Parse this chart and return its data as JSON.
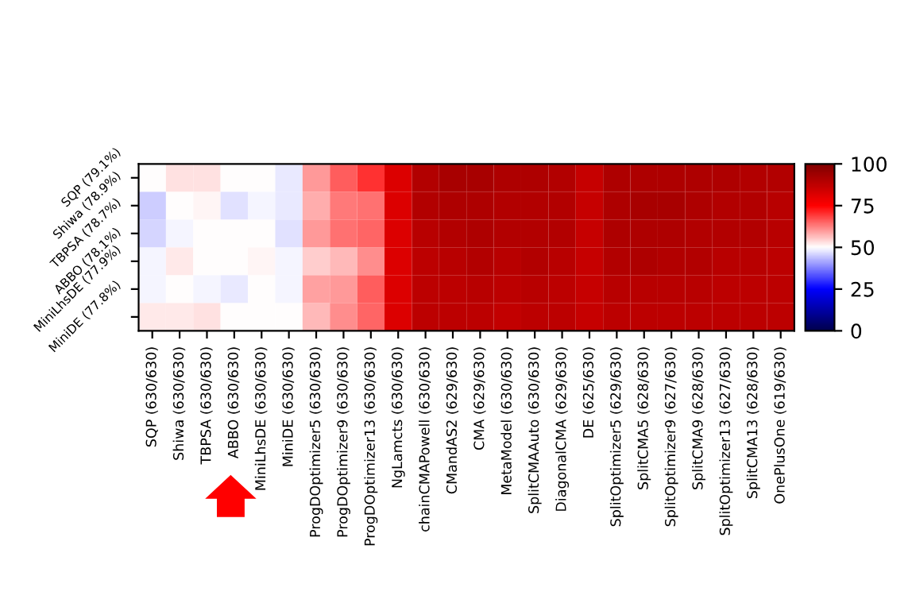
{
  "chart_data": {
    "type": "heatmap",
    "categories": [
      "SQP (630/630)",
      "Shiwa (630/630)",
      "TBPSA (630/630)",
      "ABBO (630/630)",
      "MiniLhsDE (630/630)",
      "MiniDE (630/630)",
      "ProgDOptimizer5 (630/630)",
      "ProgDOptimizer9 (630/630)",
      "ProgDOptimizer13 (630/630)",
      "NgLamcts (630/630)",
      "chainCMAPowell (630/630)",
      "CMandAS2 (629/630)",
      "CMA (629/630)",
      "MetaModel (630/630)",
      "SplitCMAAuto (630/630)",
      "DiagonalCMA (629/630)",
      "DE (625/630)",
      "SplitOptimizer5 (629/630)",
      "SplitCMA5 (628/630)",
      "SplitOptimizer9 (627/630)",
      "SplitCMA9 (628/630)",
      "SplitOptimizer13 (627/630)",
      "SplitCMA13 (628/630)",
      "OnePlusOne (619/630)"
    ],
    "y_categories": [
      "SQP (79.1%)",
      "Shiwa (78.9%)",
      "TBPSA (78.7%)",
      "ABBO (78.1%)",
      "MiniLhsDE (77.9%)",
      "MiniDE (77.8%)"
    ],
    "cells": [
      [
        50,
        53,
        53,
        50,
        50,
        48,
        60,
        66,
        70,
        82,
        90,
        92,
        92,
        91,
        91,
        90,
        86,
        91,
        91,
        91,
        91,
        91,
        90,
        90
      ],
      [
        45,
        50,
        51,
        47,
        49,
        48,
        58,
        63,
        64,
        82,
        90,
        91,
        91,
        90,
        90,
        90,
        86,
        91,
        92,
        92,
        91,
        90,
        90,
        89
      ],
      [
        46,
        49,
        50,
        50,
        50,
        47,
        60,
        64,
        65,
        82,
        89,
        90,
        91,
        90,
        90,
        90,
        86,
        91,
        91,
        91,
        90,
        90,
        90,
        89
      ],
      [
        49,
        52,
        50,
        50,
        51,
        49,
        55,
        57,
        61,
        82,
        88,
        89,
        90,
        89,
        90,
        89,
        86,
        90,
        91,
        90,
        90,
        89,
        89,
        88
      ],
      [
        49,
        50,
        49,
        48,
        50,
        49,
        59,
        60,
        66,
        82,
        88,
        88,
        89,
        88,
        89,
        88,
        86,
        89,
        89,
        89,
        89,
        88,
        88,
        88
      ],
      [
        52,
        52,
        53,
        50,
        50,
        50,
        57,
        61,
        65,
        82,
        88,
        88,
        88,
        87,
        88,
        88,
        86,
        88,
        88,
        88,
        88,
        88,
        88,
        88
      ]
    ],
    "clim": [
      0,
      100
    ],
    "cticks": [
      0,
      25,
      50,
      75,
      100
    ]
  }
}
